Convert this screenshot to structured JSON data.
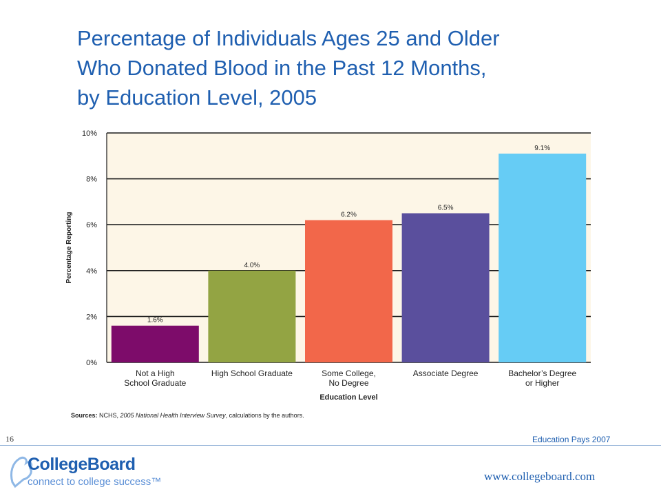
{
  "title": {
    "line1": "Percentage of Individuals Ages 25 and Older",
    "line2": "Who Donated Blood in the Past 12 Months,",
    "line3": "by Education Level, 2005"
  },
  "chart_data": {
    "type": "bar",
    "categories": [
      [
        "Not a High",
        "School Graduate"
      ],
      [
        "High School Graduate"
      ],
      [
        "Some College,",
        "No Degree"
      ],
      [
        "Associate Degree"
      ],
      [
        "Bachelor’s Degree",
        "or Higher"
      ]
    ],
    "values": [
      1.6,
      4.0,
      6.2,
      6.5,
      9.1
    ],
    "value_labels": [
      "1.6%",
      "4.0%",
      "6.2%",
      "6.5%",
      "9.1%"
    ],
    "colors": [
      "#7d0c6a",
      "#93a443",
      "#f2674a",
      "#5a4f9d",
      "#66ccf5"
    ],
    "xlabel": "Education Level",
    "ylabel": "Percentage Reporting",
    "ylim": [
      0,
      10
    ],
    "yticks": [
      0,
      2,
      4,
      6,
      8,
      10
    ],
    "ytick_labels": [
      "0%",
      "2%",
      "4%",
      "6%",
      "8%",
      "10%"
    ],
    "grid": true,
    "plot_background": "#fdf6e7"
  },
  "sources": {
    "label": "Sources:",
    "text_a": " NCHS, ",
    "text_italic": "2005 National Health Interview Survey",
    "text_b": ", calculations by the authors."
  },
  "footer": {
    "page_number": "16",
    "publication": "Education Pays 2007",
    "website": "www.collegeboard.com",
    "logo_name": "CollegeBoard",
    "logo_tagline": "connect to college success™"
  }
}
